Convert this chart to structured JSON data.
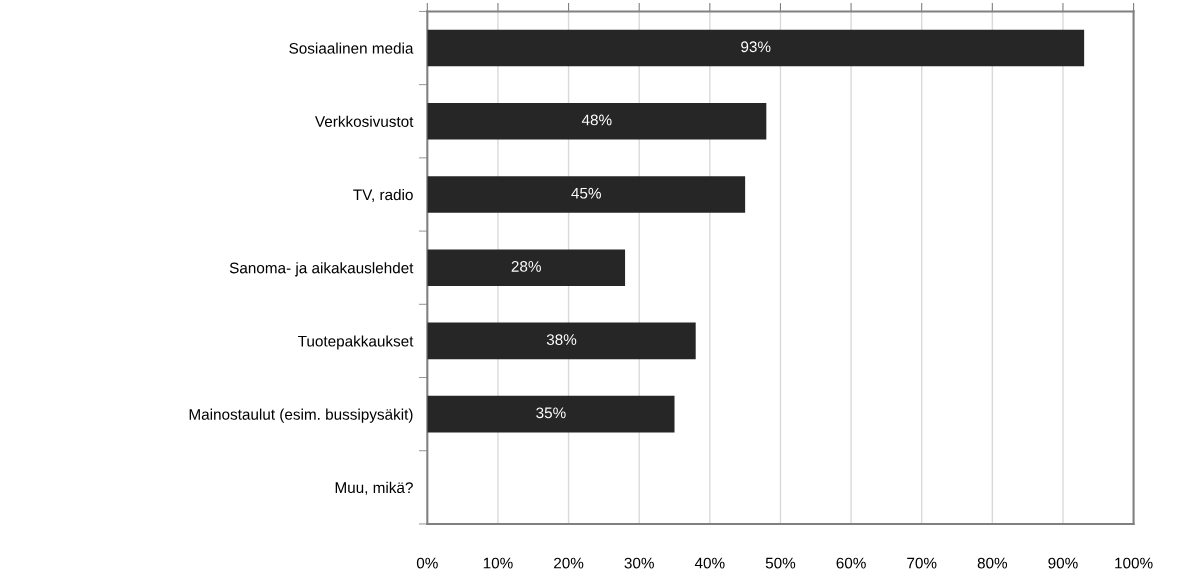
{
  "chart_data": {
    "type": "bar",
    "orientation": "horizontal",
    "categories": [
      "Sosiaalinen media",
      "Verkkosivustot",
      "TV, radio",
      "Sanoma- ja aikakauslehdet",
      "Tuotepakkaukset",
      "Mainostaulut (esim. bussipysäkit)",
      "Muu, mikä?"
    ],
    "values": [
      93,
      48,
      45,
      28,
      38,
      35,
      0
    ],
    "value_labels": [
      "93%",
      "48%",
      "45%",
      "28%",
      "38%",
      "35%",
      null
    ],
    "color": "#262626",
    "xlim": [
      0,
      100
    ],
    "xticks": [
      {
        "value": 0,
        "label": "0%"
      },
      {
        "value": 10,
        "label": "10%"
      },
      {
        "value": 20,
        "label": "20%"
      },
      {
        "value": 30,
        "label": "30%"
      },
      {
        "value": 40,
        "label": "40%"
      },
      {
        "value": 50,
        "label": "50%"
      },
      {
        "value": 60,
        "label": "60%"
      },
      {
        "value": 70,
        "label": "70%"
      },
      {
        "value": 80,
        "label": "80%"
      },
      {
        "value": 90,
        "label": "90%"
      },
      {
        "value": 100,
        "label": "100%"
      }
    ],
    "grid": "x",
    "legend": false
  }
}
